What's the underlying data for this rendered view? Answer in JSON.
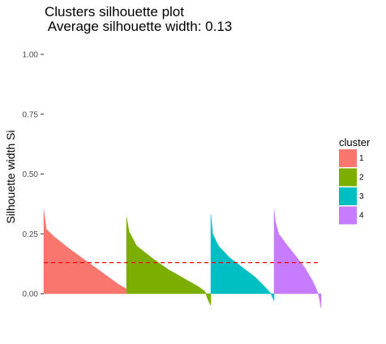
{
  "chart_data": {
    "type": "bar",
    "title": "Clusters silhouette plot",
    "subtitle": "Average silhouette width: 0.13",
    "xlabel": "",
    "ylabel": "Silhouette width Si",
    "ylim": [
      0,
      1
    ],
    "yticks": [
      "0.00",
      "0.25",
      "0.50",
      "0.75",
      "1.00"
    ],
    "grid": false,
    "legend": {
      "title": "cluster",
      "position": "right",
      "entries": [
        "1",
        "2",
        "3",
        "4"
      ]
    },
    "average_silhouette_width": 0.13,
    "average_line_color": "#ff0000",
    "series": [
      {
        "cluster": "1",
        "color": "#f8766d",
        "profile_x": [
          0,
          0.03,
          0.12,
          0.3,
          0.5,
          0.7,
          0.9,
          1
        ],
        "profile_y": [
          0.35,
          0.27,
          0.24,
          0.19,
          0.14,
          0.09,
          0.04,
          0.02
        ]
      },
      {
        "cluster": "2",
        "color": "#7cae00",
        "profile_x": [
          0,
          0.03,
          0.12,
          0.3,
          0.5,
          0.7,
          0.85,
          0.93,
          0.96,
          1
        ],
        "profile_y": [
          0.32,
          0.26,
          0.2,
          0.15,
          0.1,
          0.06,
          0.03,
          0.01,
          -0.02,
          -0.05
        ]
      },
      {
        "cluster": "3",
        "color": "#00bfc4",
        "profile_x": [
          0,
          0.03,
          0.12,
          0.3,
          0.5,
          0.7,
          0.85,
          0.95,
          1
        ],
        "profile_y": [
          0.33,
          0.25,
          0.2,
          0.15,
          0.11,
          0.07,
          0.03,
          0.0,
          -0.03
        ]
      },
      {
        "cluster": "4",
        "color": "#c77cff",
        "profile_x": [
          0,
          0.03,
          0.1,
          0.25,
          0.45,
          0.65,
          0.8,
          0.9,
          0.95,
          1
        ],
        "profile_y": [
          0.35,
          0.3,
          0.25,
          0.21,
          0.16,
          0.11,
          0.06,
          0.02,
          -0.01,
          -0.06
        ]
      }
    ]
  }
}
